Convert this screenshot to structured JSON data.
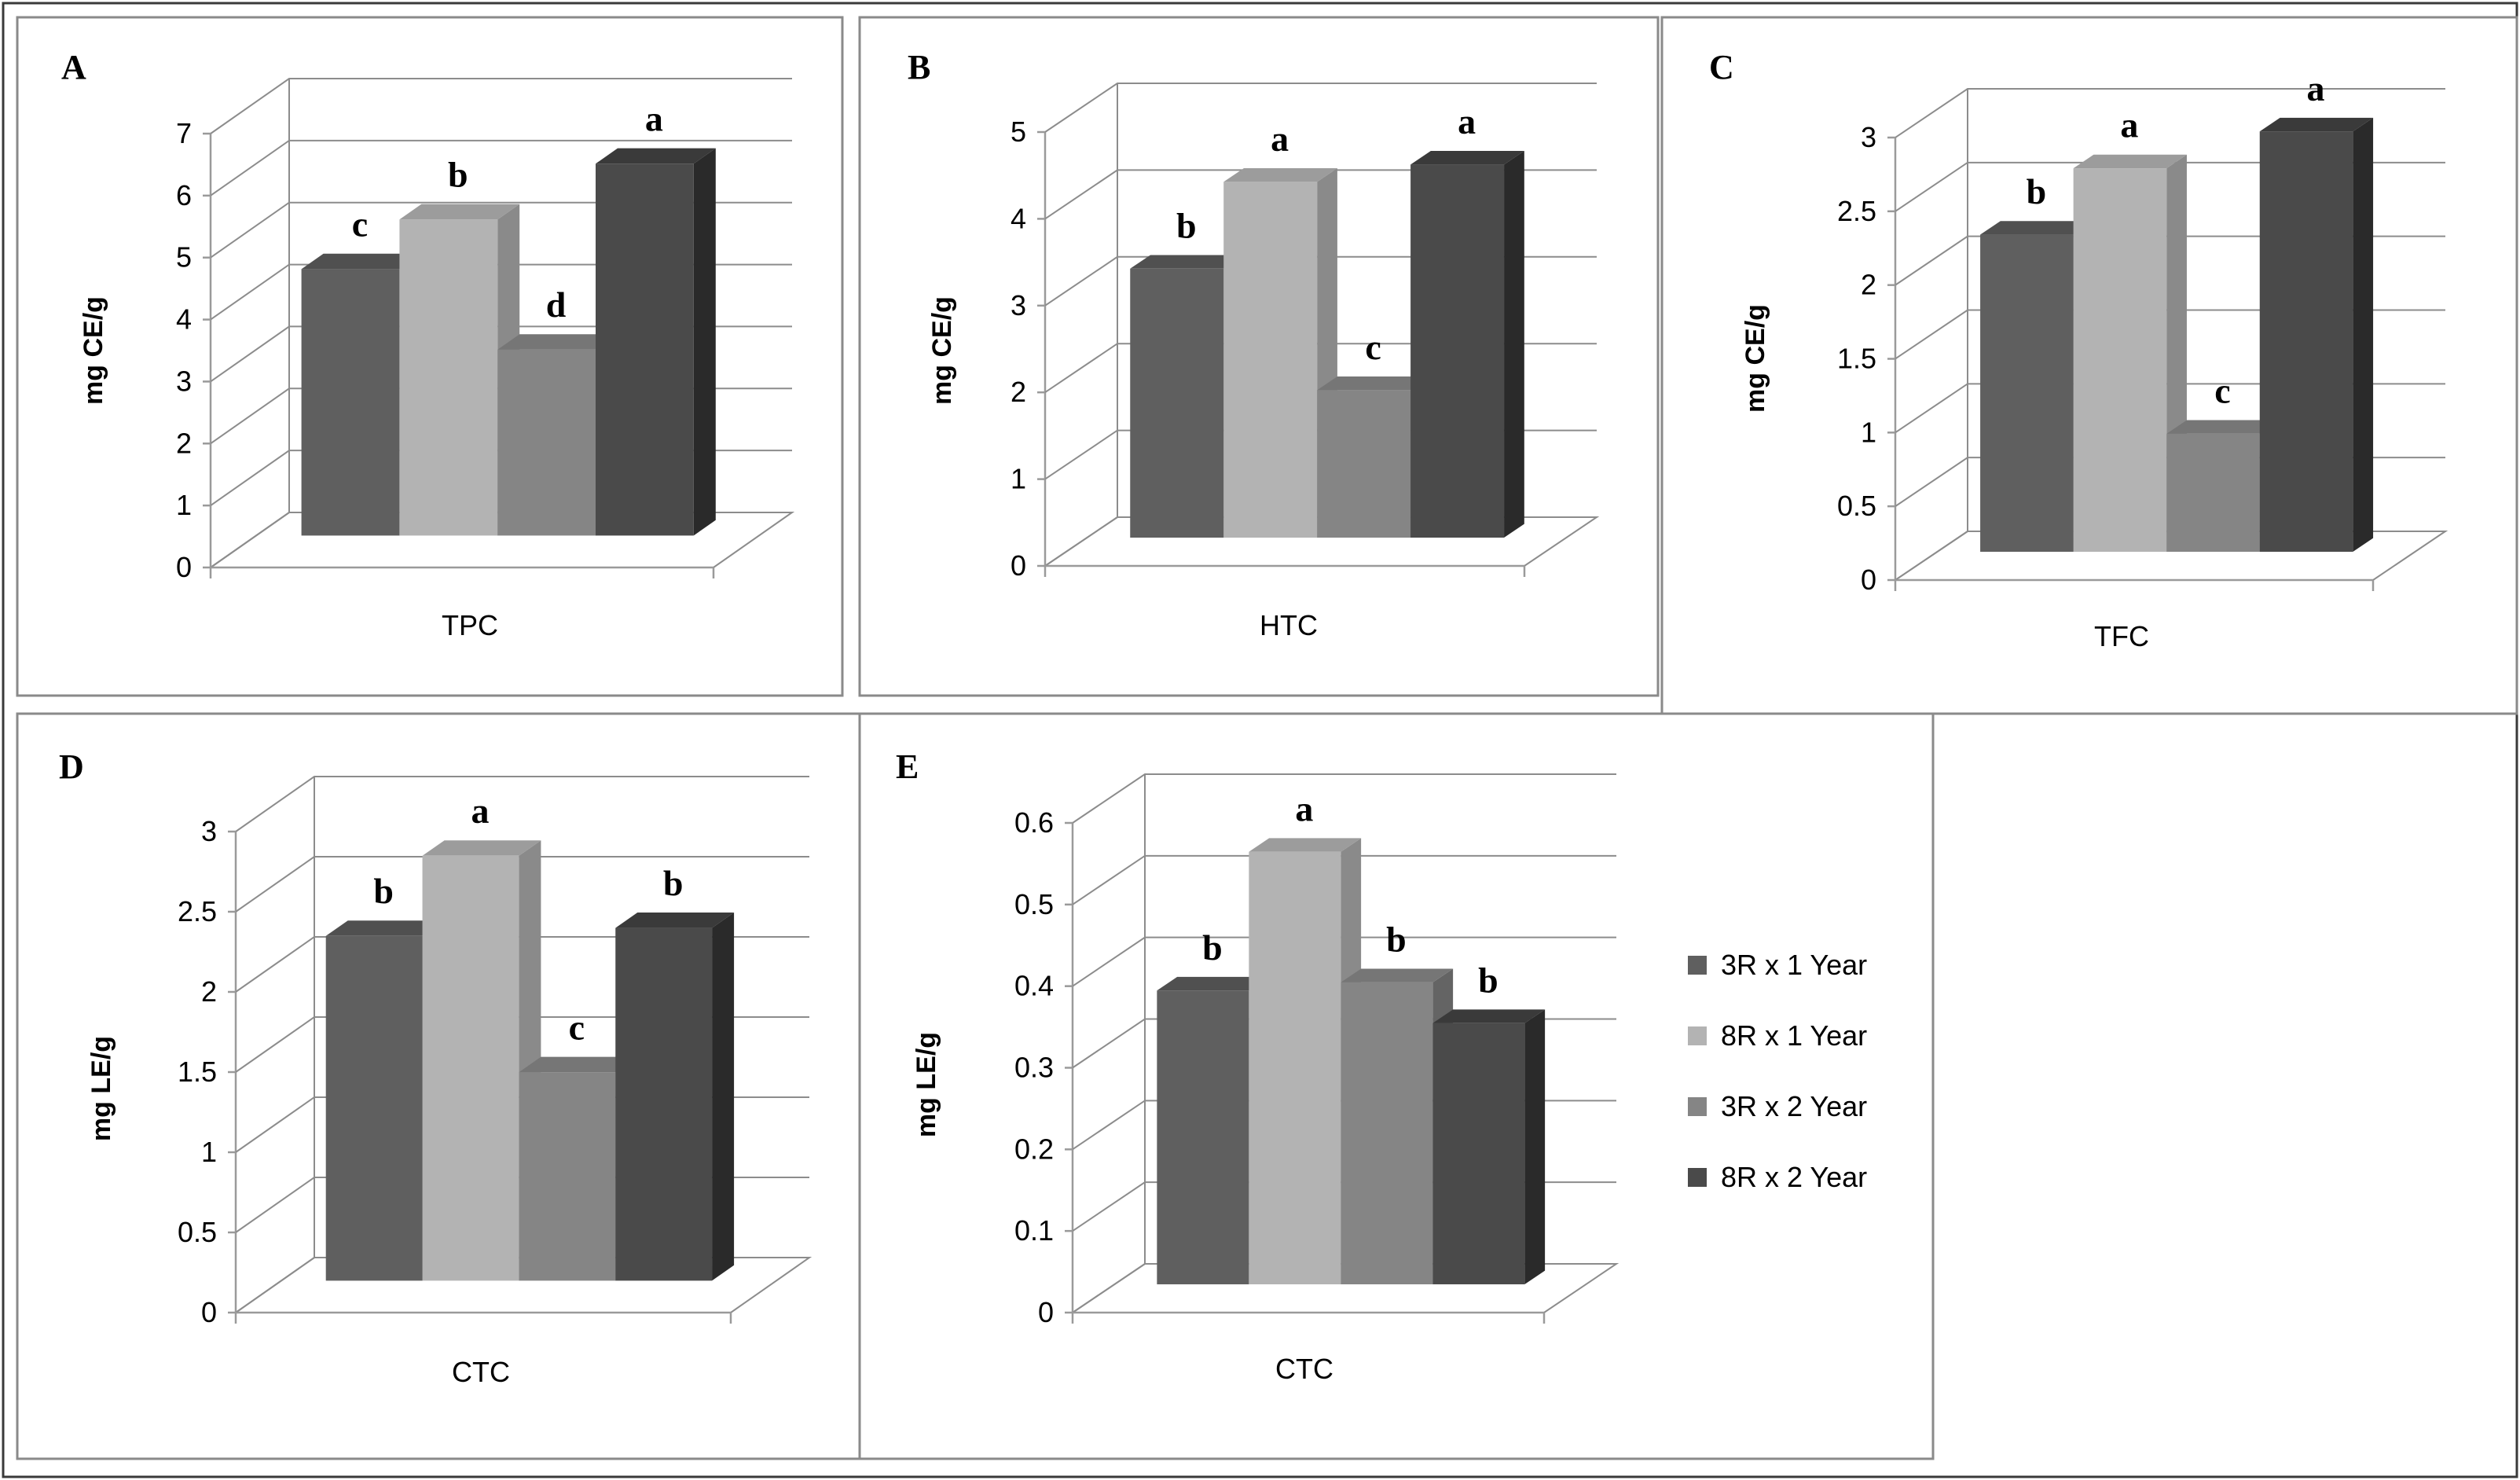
{
  "series_names": [
    "3R x 1 Year",
    "8R x 1 Year",
    "3R x 2 Year",
    "8R x 2 Year"
  ],
  "series_colors": {
    "front": [
      "#5f5f5f",
      "#b3b3b3",
      "#858585",
      "#4a4a4a"
    ],
    "side": [
      "#3f3f3f",
      "#8a8a8a",
      "#646464",
      "#2a2a2a"
    ],
    "top": [
      "#505050",
      "#9c9c9c",
      "#767676",
      "#3a3a3a"
    ]
  },
  "legend": {
    "items": [
      "3R x 1 Year",
      "8R x 1 Year",
      "3R x 2 Year",
      "8R x 2 Year"
    ]
  },
  "chart_data": [
    {
      "panel": "A",
      "type": "bar",
      "categories": [
        "TPC"
      ],
      "xlabel": "TPC",
      "ylabel": "mg CE/g",
      "ylim": [
        0,
        7
      ],
      "yticks": [
        "0",
        "1",
        "2",
        "3",
        "4",
        "5",
        "6",
        "7"
      ],
      "series": [
        {
          "name": "3R x 1 Year",
          "values": [
            4.3
          ]
        },
        {
          "name": "8R x 1 Year",
          "values": [
            5.1
          ]
        },
        {
          "name": "3R x 2 Year",
          "values": [
            3.0
          ]
        },
        {
          "name": "8R x 2 Year",
          "values": [
            6.0
          ]
        }
      ],
      "significance": [
        "c",
        "b",
        "d",
        "a"
      ]
    },
    {
      "panel": "B",
      "type": "bar",
      "categories": [
        "HTC"
      ],
      "xlabel": "HTC",
      "ylabel": "mg CE/g",
      "ylim": [
        0,
        5
      ],
      "yticks": [
        "0",
        "1",
        "2",
        "3",
        "4",
        "5"
      ],
      "series": [
        {
          "name": "3R x 1 Year",
          "values": [
            3.1
          ]
        },
        {
          "name": "8R x 1 Year",
          "values": [
            4.1
          ]
        },
        {
          "name": "3R x 2 Year",
          "values": [
            1.7
          ]
        },
        {
          "name": "8R x 2 Year",
          "values": [
            4.3
          ]
        }
      ],
      "significance": [
        "b",
        "a",
        "c",
        "a"
      ]
    },
    {
      "panel": "C",
      "type": "bar",
      "categories": [
        "TFC"
      ],
      "xlabel": "TFC",
      "ylabel": "mg CE/g",
      "ylim": [
        0,
        3
      ],
      "yticks": [
        "0",
        "0.5",
        "1",
        "1.5",
        "2",
        "2.5",
        "3"
      ],
      "series": [
        {
          "name": "3R x 1 Year",
          "values": [
            2.15
          ]
        },
        {
          "name": "8R x 1 Year",
          "values": [
            2.6
          ]
        },
        {
          "name": "3R x 2 Year",
          "values": [
            0.8
          ]
        },
        {
          "name": "8R x 2 Year",
          "values": [
            2.85
          ]
        }
      ],
      "significance": [
        "b",
        "a",
        "c",
        "a"
      ]
    },
    {
      "panel": "D",
      "type": "bar",
      "categories": [
        "CTC"
      ],
      "xlabel": "CTC",
      "ylabel": "mg LE/g",
      "ylim": [
        0,
        3
      ],
      "yticks": [
        "0",
        "0.5",
        "1",
        "1.5",
        "2",
        "2.5",
        "3"
      ],
      "series": [
        {
          "name": "3R x 1 Year",
          "values": [
            2.15
          ]
        },
        {
          "name": "8R x 1 Year",
          "values": [
            2.65
          ]
        },
        {
          "name": "3R x 2 Year",
          "values": [
            1.3
          ]
        },
        {
          "name": "8R x 2 Year",
          "values": [
            2.2
          ]
        }
      ],
      "significance": [
        "b",
        "a",
        "c",
        "b"
      ]
    },
    {
      "panel": "E",
      "type": "bar",
      "categories": [
        "CTC"
      ],
      "xlabel": "CTC",
      "ylabel": "mg LE/g",
      "ylim": [
        0,
        0.6
      ],
      "yticks": [
        "0",
        "0.1",
        "0.2",
        "0.3",
        "0.4",
        "0.5",
        "0.6"
      ],
      "series": [
        {
          "name": "3R x 1 Year",
          "values": [
            0.36
          ]
        },
        {
          "name": "8R x 1 Year",
          "values": [
            0.53
          ]
        },
        {
          "name": "3R x 2 Year",
          "values": [
            0.37
          ]
        },
        {
          "name": "8R x 2 Year",
          "values": [
            0.32
          ]
        }
      ],
      "significance": [
        "b",
        "a",
        "b",
        "b"
      ]
    }
  ]
}
